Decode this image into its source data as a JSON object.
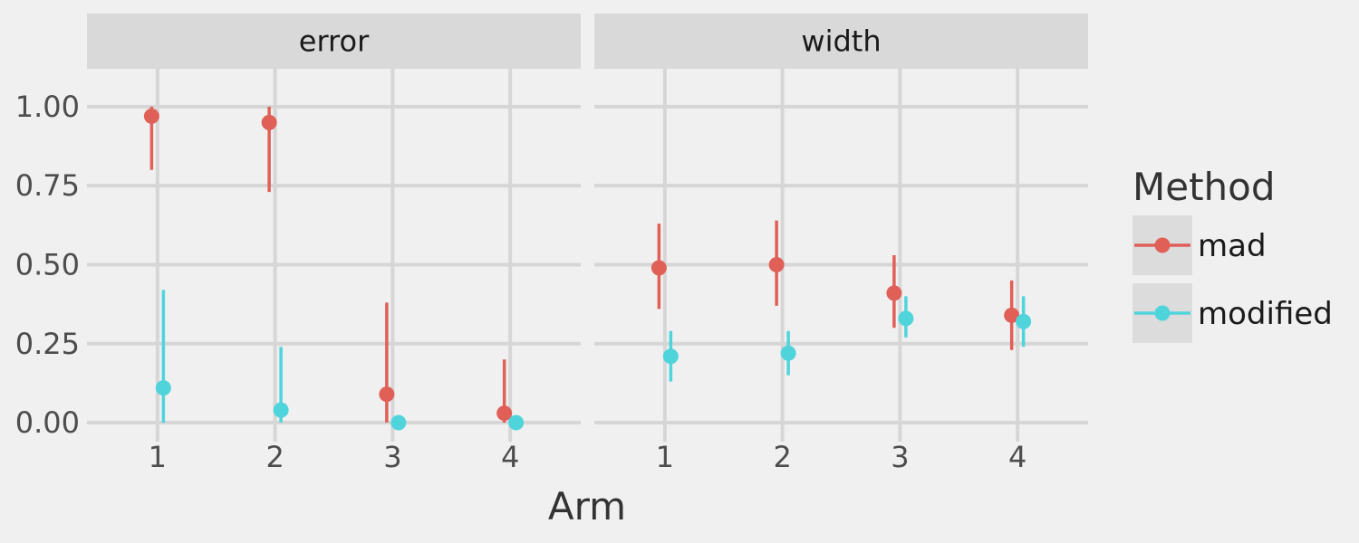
{
  "chart_data": {
    "type": "scatter",
    "geom": "pointrange",
    "x_label": "Arm",
    "x_categories": [
      "1",
      "2",
      "3",
      "4"
    ],
    "y_ticks": [
      "0.00",
      "0.25",
      "0.50",
      "0.75",
      "1.00"
    ],
    "ylim": [
      -0.06,
      1.12
    ],
    "legend": {
      "title": "Method",
      "position": "right"
    },
    "colors": {
      "mad": "#e06058",
      "modified": "#50d4dc"
    },
    "panels": [
      {
        "name": "error",
        "series": [
          {
            "name": "mad",
            "points": [
              {
                "x": 1,
                "y": 0.97,
                "ymin": 0.8,
                "ymax": 1.0
              },
              {
                "x": 2,
                "y": 0.95,
                "ymin": 0.73,
                "ymax": 1.0
              },
              {
                "x": 3,
                "y": 0.09,
                "ymin": 0.0,
                "ymax": 0.38
              },
              {
                "x": 4,
                "y": 0.03,
                "ymin": 0.0,
                "ymax": 0.2
              }
            ]
          },
          {
            "name": "modified",
            "points": [
              {
                "x": 1,
                "y": 0.11,
                "ymin": 0.0,
                "ymax": 0.42
              },
              {
                "x": 2,
                "y": 0.04,
                "ymin": 0.0,
                "ymax": 0.24
              },
              {
                "x": 3,
                "y": 0.0,
                "ymin": 0.0,
                "ymax": 0.0
              },
              {
                "x": 4,
                "y": 0.0,
                "ymin": 0.0,
                "ymax": 0.0
              }
            ]
          }
        ]
      },
      {
        "name": "width",
        "series": [
          {
            "name": "mad",
            "points": [
              {
                "x": 1,
                "y": 0.49,
                "ymin": 0.36,
                "ymax": 0.63
              },
              {
                "x": 2,
                "y": 0.5,
                "ymin": 0.37,
                "ymax": 0.64
              },
              {
                "x": 3,
                "y": 0.41,
                "ymin": 0.3,
                "ymax": 0.53
              },
              {
                "x": 4,
                "y": 0.34,
                "ymin": 0.23,
                "ymax": 0.45
              }
            ]
          },
          {
            "name": "modified",
            "points": [
              {
                "x": 1,
                "y": 0.21,
                "ymin": 0.13,
                "ymax": 0.29
              },
              {
                "x": 2,
                "y": 0.22,
                "ymin": 0.15,
                "ymax": 0.29
              },
              {
                "x": 3,
                "y": 0.33,
                "ymin": 0.27,
                "ymax": 0.4
              },
              {
                "x": 4,
                "y": 0.32,
                "ymin": 0.24,
                "ymax": 0.4
              }
            ]
          }
        ]
      }
    ]
  }
}
